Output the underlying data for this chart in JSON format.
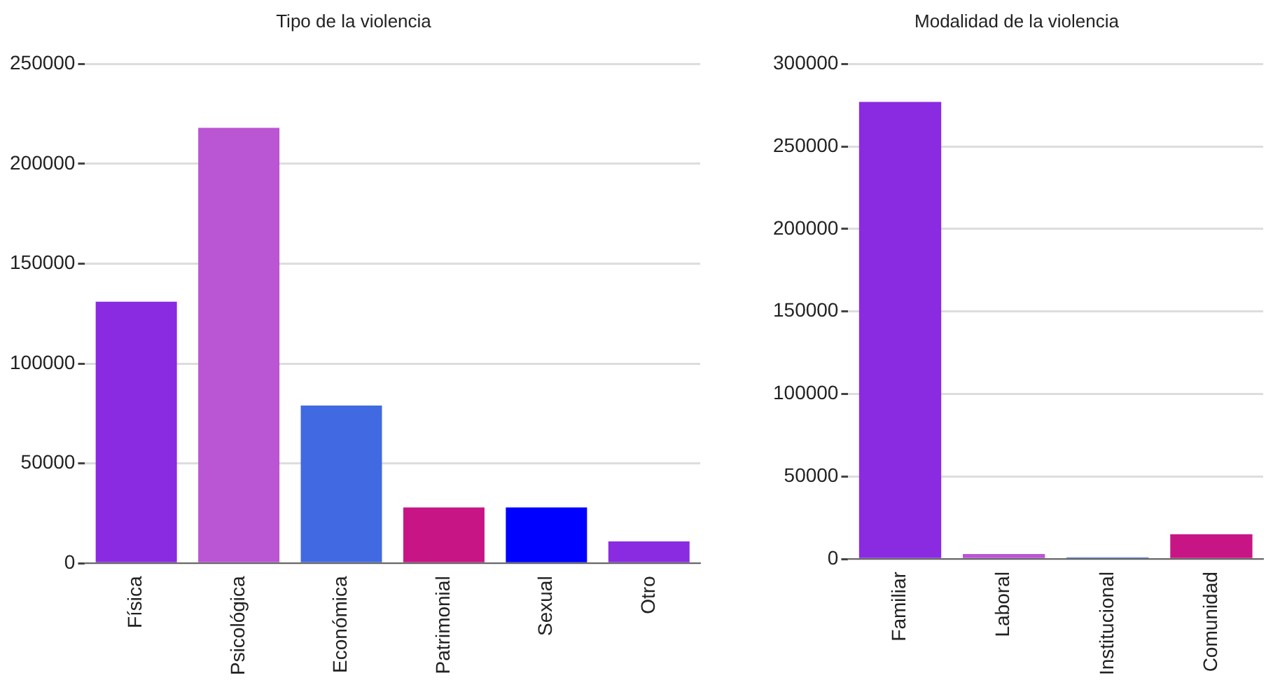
{
  "chart_data": [
    {
      "type": "bar",
      "title": "Tipo de la violencia",
      "categories": [
        "Física",
        "Psicológica",
        "Económica",
        "Patrimonial",
        "Sexual",
        "Otro"
      ],
      "values": [
        131000,
        218000,
        79000,
        28000,
        28000,
        11000
      ],
      "colors": [
        "#8a2be2",
        "#ba55d3",
        "#4169e1",
        "#c71585",
        "#0000ff",
        "#8a2be2"
      ],
      "ylim": [
        0,
        250000
      ],
      "yticks": [
        0,
        50000,
        100000,
        150000,
        200000,
        250000
      ],
      "grid": "y",
      "legend": false
    },
    {
      "type": "bar",
      "title": "Modalidad de la violencia",
      "categories": [
        "Familiar",
        "Laboral",
        "Institucional",
        "Comunidad"
      ],
      "values": [
        277000,
        3000,
        1000,
        15000
      ],
      "colors": [
        "#8a2be2",
        "#ba55d3",
        "#4169e1",
        "#c71585"
      ],
      "ylim": [
        0,
        300000
      ],
      "yticks": [
        0,
        50000,
        100000,
        150000,
        200000,
        250000,
        300000
      ],
      "grid": "y",
      "legend": false
    }
  ]
}
